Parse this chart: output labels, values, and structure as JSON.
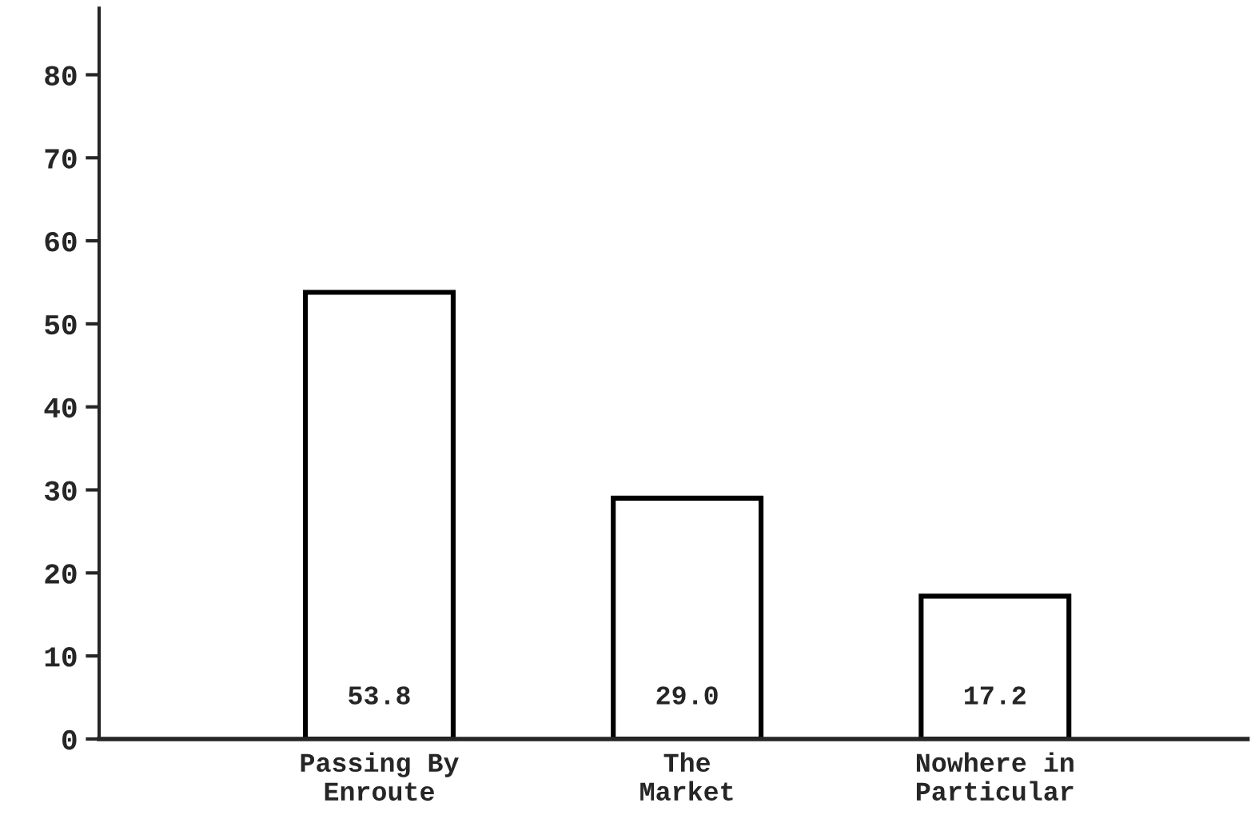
{
  "chart_data": {
    "type": "bar",
    "categories": [
      "Passing By\nEnroute",
      "The\nMarket",
      "Nowhere in\nParticular"
    ],
    "values": [
      53.8,
      29.0,
      17.2
    ],
    "color": "#ffffff",
    "ylim": [
      0,
      88
    ],
    "yticks": [
      0,
      10,
      20,
      30,
      40,
      50,
      60,
      70,
      80
    ],
    "value_labels": [
      "53.8",
      "29.0",
      "17.2"
    ],
    "grid": false,
    "legend": false
  }
}
